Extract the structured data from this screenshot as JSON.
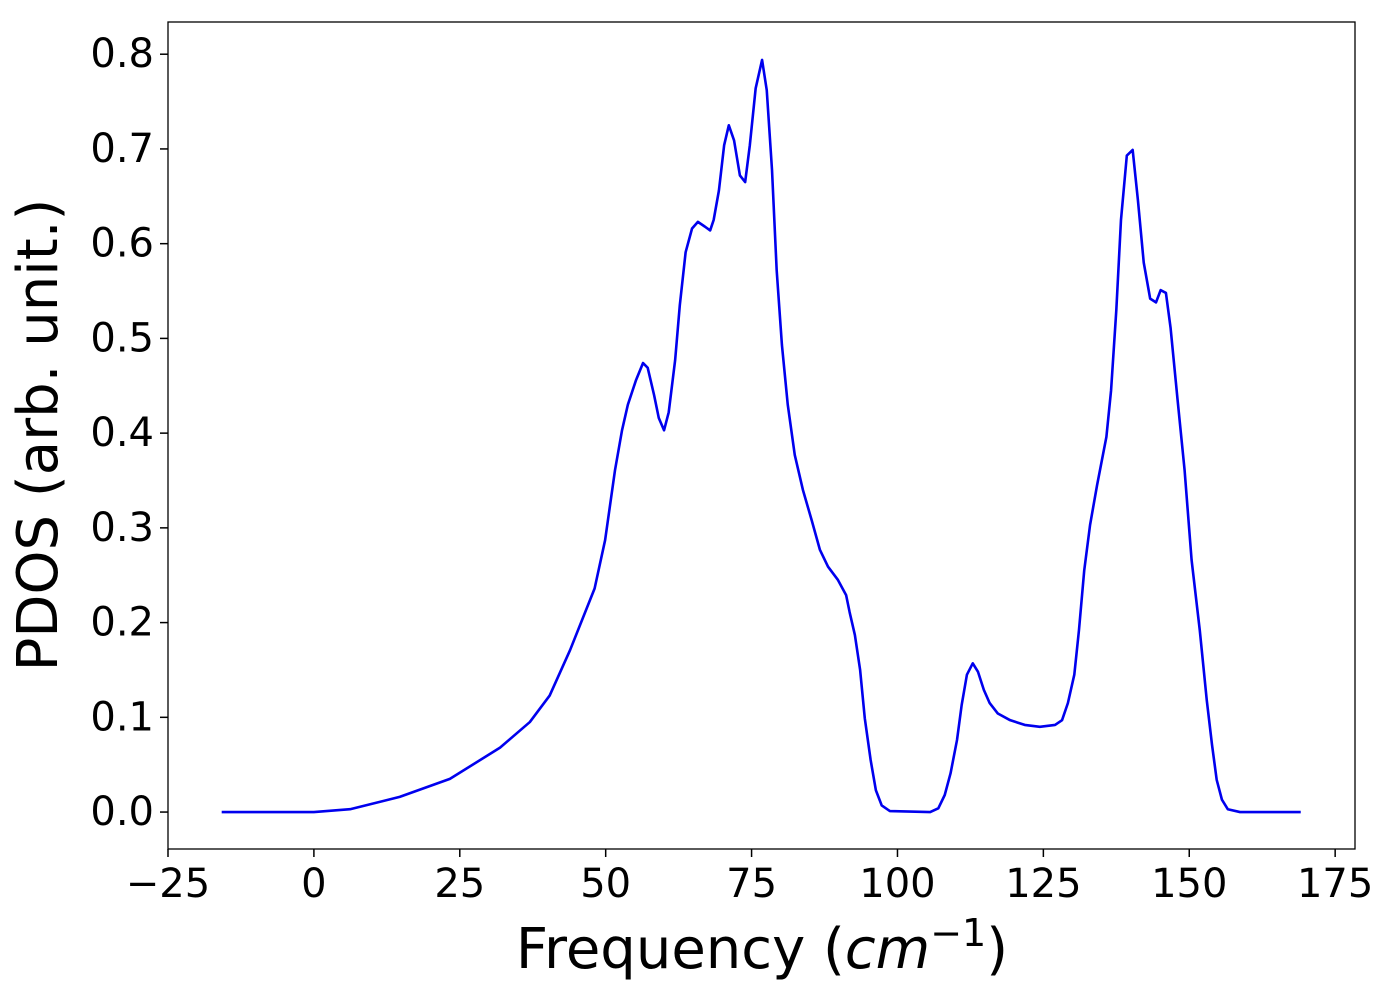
{
  "chart_data": {
    "type": "line",
    "xlabel": [
      "Frequency (",
      "cm",
      "−1",
      ")"
    ],
    "ylabel": "PDOS (arb. unit.)",
    "xlim": [
      -25,
      178.4
    ],
    "ylim": [
      -0.039,
      0.834
    ],
    "xticks": [
      {
        "value": -25,
        "label": "−25"
      },
      0,
      25,
      50,
      75,
      100,
      125,
      150,
      175
    ],
    "yticks": [
      {
        "value": 0,
        "label": "0.0"
      },
      0.1,
      0.2,
      0.3,
      0.4,
      0.5,
      0.6,
      0.7,
      0.8
    ],
    "grid": false,
    "series": [
      {
        "color": "#0000ee",
        "x": [
          -15.8,
          0,
          6.2,
          14.7,
          23.3,
          31.9,
          37.0,
          40.4,
          43.9,
          48.1,
          49.9,
          51.6,
          52.8,
          53.8,
          55.2,
          56.4,
          57.2,
          58.3,
          59.1,
          60.0,
          60.8,
          61.9,
          62.7,
          63.7,
          64.8,
          65.8,
          67.0,
          67.9,
          68.5,
          69.4,
          70.3,
          71.1,
          72.0,
          73.0,
          73.9,
          74.7,
          75.7,
          76.8,
          77.6,
          78.5,
          79.3,
          80.2,
          81.2,
          82.4,
          83.8,
          85.3,
          86.7,
          88.1,
          89.8,
          91.2,
          91.8,
          92.7,
          93.6,
          94.4,
          95.4,
          96.3,
          97.3,
          98.7,
          105.6,
          107.0,
          108.1,
          109.1,
          110.2,
          111.0,
          111.9,
          112.9,
          113.8,
          114.8,
          115.8,
          117.2,
          119.3,
          121.8,
          124.4,
          127.0,
          128.2,
          129.2,
          130.3,
          131.1,
          132.0,
          133.0,
          134.2,
          135.8,
          136.6,
          137.5,
          138.3,
          139.3,
          140.3,
          141.2,
          142.2,
          143.3,
          144.3,
          145.1,
          146.0,
          146.8,
          148.0,
          149.2,
          150.4,
          151.8,
          153.0,
          153.9,
          154.7,
          155.6,
          156.6,
          158.7,
          169.1
        ],
        "values": [
          0,
          0,
          0.003,
          0.016,
          0.035,
          0.068,
          0.095,
          0.123,
          0.171,
          0.236,
          0.287,
          0.361,
          0.403,
          0.43,
          0.456,
          0.474,
          0.469,
          0.44,
          0.416,
          0.403,
          0.422,
          0.477,
          0.535,
          0.591,
          0.616,
          0.623,
          0.618,
          0.614,
          0.625,
          0.656,
          0.704,
          0.725,
          0.709,
          0.672,
          0.665,
          0.704,
          0.764,
          0.794,
          0.762,
          0.678,
          0.572,
          0.493,
          0.43,
          0.377,
          0.34,
          0.308,
          0.277,
          0.259,
          0.245,
          0.229,
          0.211,
          0.187,
          0.15,
          0.099,
          0.055,
          0.023,
          0.007,
          0.001,
          0,
          0.004,
          0.018,
          0.041,
          0.076,
          0.113,
          0.145,
          0.157,
          0.148,
          0.129,
          0.115,
          0.104,
          0.097,
          0.092,
          0.09,
          0.092,
          0.097,
          0.115,
          0.145,
          0.192,
          0.255,
          0.303,
          0.345,
          0.396,
          0.445,
          0.53,
          0.625,
          0.693,
          0.699,
          0.646,
          0.58,
          0.542,
          0.538,
          0.551,
          0.548,
          0.511,
          0.435,
          0.361,
          0.266,
          0.192,
          0.118,
          0.071,
          0.034,
          0.013,
          0.003,
          0,
          0
        ]
      }
    ]
  }
}
